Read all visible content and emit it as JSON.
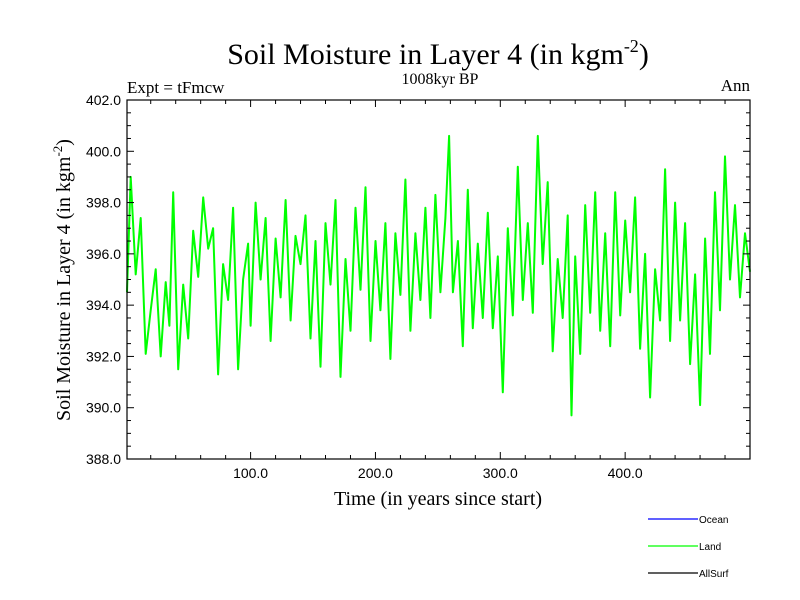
{
  "chart_data": {
    "type": "line",
    "title_main": "Soil Moisture in Layer 4 (in kgm",
    "title_sup": "-2",
    "title_close": ")",
    "subtitle": "1008kyr BP",
    "left_label": "Expt = tFmcw",
    "right_label": "Ann",
    "xlabel": "Time (in years since start)",
    "ylabel_main": "Soil Moisture in Layer 4 (in kgm",
    "ylabel_sup": "-2",
    "ylabel_close": ")",
    "xlim": [
      1,
      500
    ],
    "ylim": [
      388,
      402
    ],
    "xticks": [
      100,
      200,
      300,
      400
    ],
    "xtick_labels": [
      "100.0",
      "200.0",
      "300.0",
      "400.0"
    ],
    "yticks": [
      388,
      390,
      392,
      394,
      396,
      398,
      400,
      402
    ],
    "ytick_labels": [
      "388.0",
      "390.0",
      "392.0",
      "394.0",
      "396.0",
      "398.0",
      "400.0",
      "402.0"
    ],
    "legend": [
      {
        "name": "Ocean",
        "color": "#0000ff"
      },
      {
        "name": "Land",
        "color": "#00ff00"
      },
      {
        "name": "AllSurf",
        "color": "#000000"
      }
    ],
    "series": [
      {
        "name": "Land",
        "color": "#00ff00",
        "x": [
          1,
          4,
          8,
          12,
          16,
          20,
          24,
          28,
          32,
          35,
          38,
          42,
          46,
          50,
          54,
          58,
          62,
          66,
          70,
          74,
          78,
          82,
          86,
          90,
          94,
          98,
          100,
          104,
          108,
          112,
          116,
          120,
          124,
          128,
          132,
          136,
          140,
          144,
          148,
          152,
          156,
          160,
          164,
          168,
          172,
          176,
          180,
          184,
          188,
          192,
          196,
          200,
          204,
          208,
          212,
          216,
          220,
          224,
          228,
          232,
          236,
          240,
          244,
          248,
          252,
          256,
          259,
          262,
          266,
          270,
          274,
          278,
          282,
          286,
          290,
          294,
          298,
          302,
          306,
          310,
          314,
          318,
          322,
          326,
          330,
          334,
          338,
          342,
          346,
          350,
          354,
          357,
          360,
          364,
          368,
          372,
          376,
          380,
          384,
          388,
          392,
          396,
          400,
          404,
          408,
          412,
          416,
          420,
          424,
          428,
          432,
          436,
          440,
          444,
          448,
          452,
          456,
          460,
          464,
          468,
          472,
          476,
          480,
          484,
          488,
          492,
          496,
          500
        ],
        "values": [
          394.5,
          399.0,
          395.2,
          397.4,
          392.1,
          393.8,
          395.4,
          392.0,
          394.9,
          393.2,
          398.4,
          391.5,
          394.8,
          392.7,
          396.9,
          395.1,
          398.2,
          396.2,
          397.0,
          391.3,
          395.6,
          394.2,
          397.8,
          391.5,
          395.0,
          396.4,
          393.2,
          398.0,
          395.0,
          397.4,
          392.6,
          396.6,
          394.3,
          398.1,
          393.4,
          396.7,
          395.6,
          397.5,
          392.7,
          396.5,
          391.6,
          397.2,
          394.8,
          398.1,
          391.2,
          395.8,
          393.0,
          397.8,
          394.6,
          398.6,
          392.6,
          396.5,
          393.8,
          397.2,
          391.9,
          396.8,
          394.4,
          398.9,
          393.0,
          396.8,
          394.2,
          397.8,
          393.5,
          398.3,
          394.5,
          397.4,
          400.6,
          394.5,
          396.5,
          392.4,
          398.5,
          393.1,
          396.4,
          393.5,
          397.6,
          393.1,
          395.9,
          390.6,
          397.0,
          393.6,
          399.4,
          394.2,
          397.2,
          393.7,
          400.6,
          395.6,
          398.8,
          392.2,
          395.8,
          393.5,
          397.5,
          389.7,
          395.9,
          392.1,
          397.9,
          393.7,
          398.4,
          393.0,
          396.8,
          392.4,
          398.4,
          393.6,
          397.3,
          394.5,
          398.2,
          392.3,
          396.0,
          390.4,
          395.4,
          393.4,
          399.3,
          392.6,
          398.0,
          393.4,
          397.2,
          391.7,
          395.2,
          390.1,
          396.6,
          392.1,
          398.4,
          393.8,
          399.8,
          395.0,
          397.9,
          394.3,
          396.8,
          395.3
        ]
      }
    ]
  }
}
